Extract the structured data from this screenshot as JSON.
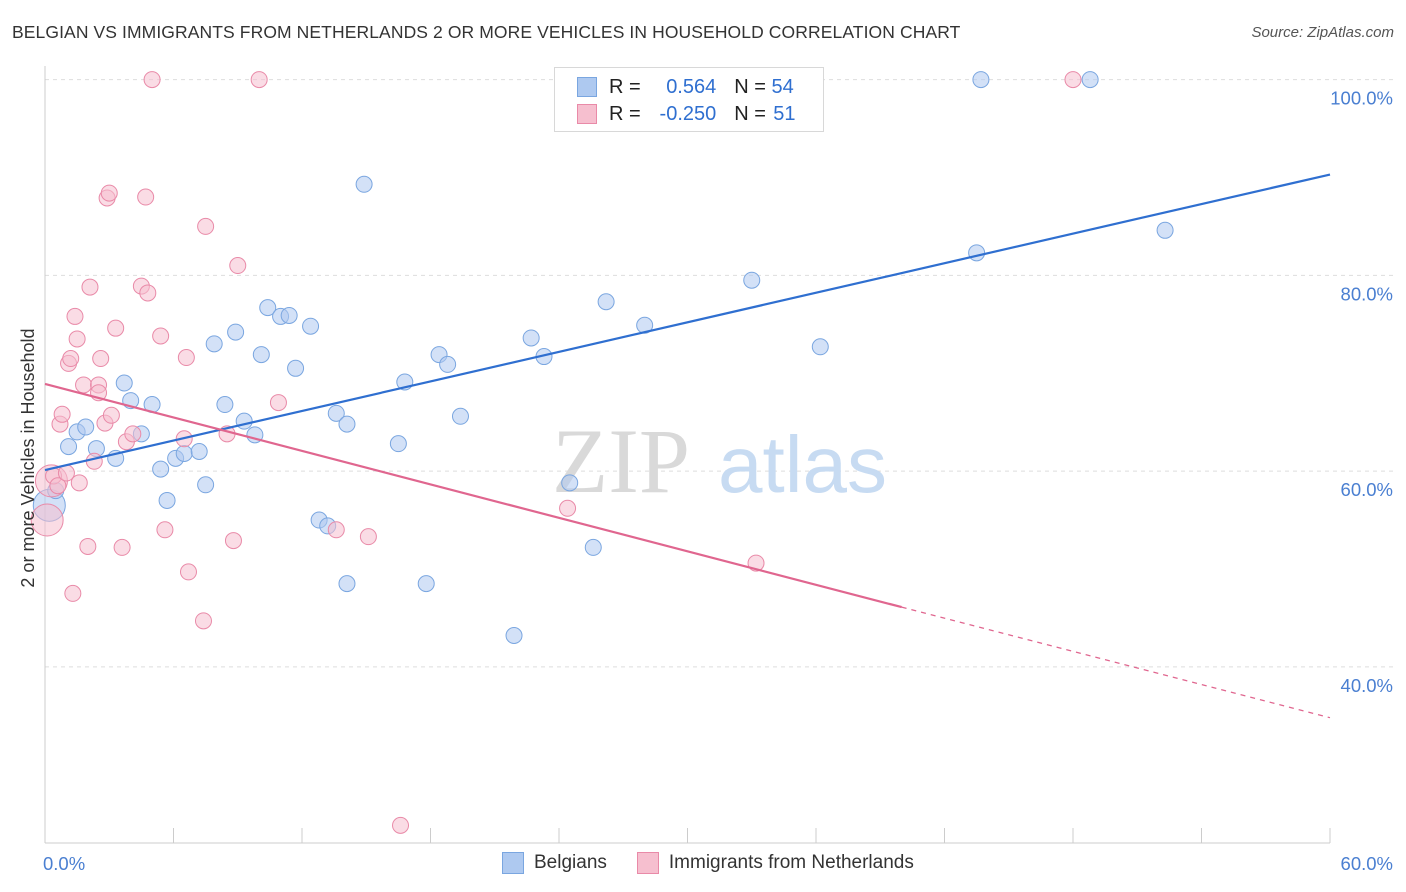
{
  "header": {
    "title": "BELGIAN VS IMMIGRANTS FROM NETHERLANDS 2 OR MORE VEHICLES IN HOUSEHOLD CORRELATION CHART",
    "source": "Source: ZipAtlas.com"
  },
  "legend": {
    "rows": [
      {
        "r_label": "R = ",
        "r_value": "0.564",
        "n_label": "N = ",
        "n_value": "54"
      },
      {
        "r_label": "R = ",
        "r_value": "-0.250",
        "n_label": "N = ",
        "n_value": "51"
      }
    ],
    "series_names": [
      "Belgians",
      "Immigrants from Netherlands"
    ]
  },
  "watermark": {
    "zip": "ZIP",
    "atlas": "atlas"
  },
  "colors": {
    "blue_fill": "#aec9f0",
    "blue_stroke": "#7aa6e0",
    "blue_line": "#2f6fd0",
    "pink_fill": "#f6bfcf",
    "pink_stroke": "#e98aa8",
    "pink_line": "#e0668f",
    "tick_color": "#4a7fd1",
    "grid": "#dddddd"
  },
  "chart_data": {
    "type": "scatter",
    "ylabel": "2 or more Vehicles in Household",
    "xlim": [
      0,
      60
    ],
    "ylim": [
      22,
      102
    ],
    "x_tick_labels": [
      "0.0%",
      "60.0%"
    ],
    "y_ticks": [
      40,
      60,
      80,
      100
    ],
    "y_tick_labels": [
      "40.0%",
      "60.0%",
      "80.0%",
      "100.0%"
    ],
    "grid": true,
    "series": [
      {
        "name": "Belgians",
        "points": [
          [
            0.2,
            56.5
          ],
          [
            0.5,
            58.0
          ],
          [
            1.1,
            62.5
          ],
          [
            1.5,
            64.0
          ],
          [
            1.9,
            64.5
          ],
          [
            2.4,
            62.3
          ],
          [
            3.3,
            61.3
          ],
          [
            3.7,
            69.0
          ],
          [
            4.0,
            67.2
          ],
          [
            4.5,
            63.8
          ],
          [
            5.0,
            66.8
          ],
          [
            5.4,
            60.2
          ],
          [
            5.7,
            57.0
          ],
          [
            6.1,
            61.3
          ],
          [
            6.5,
            61.8
          ],
          [
            7.2,
            62.0
          ],
          [
            7.5,
            58.6
          ],
          [
            7.9,
            73.0
          ],
          [
            8.4,
            66.8
          ],
          [
            8.9,
            74.2
          ],
          [
            9.3,
            65.1
          ],
          [
            9.8,
            63.7
          ],
          [
            10.1,
            71.9
          ],
          [
            10.4,
            76.7
          ],
          [
            11.0,
            75.8
          ],
          [
            11.4,
            75.9
          ],
          [
            11.7,
            70.5
          ],
          [
            12.4,
            74.8
          ],
          [
            12.8,
            55.0
          ],
          [
            13.2,
            54.4
          ],
          [
            13.6,
            65.9
          ],
          [
            14.1,
            48.5
          ],
          [
            14.1,
            64.8
          ],
          [
            14.9,
            89.3
          ],
          [
            16.5,
            62.8
          ],
          [
            16.8,
            69.1
          ],
          [
            17.8,
            48.5
          ],
          [
            18.4,
            71.9
          ],
          [
            18.8,
            70.9
          ],
          [
            19.4,
            65.6
          ],
          [
            21.9,
            43.2
          ],
          [
            22.7,
            73.6
          ],
          [
            23.3,
            71.7
          ],
          [
            24.5,
            58.8
          ],
          [
            25.6,
            52.2
          ],
          [
            26.2,
            77.3
          ],
          [
            28.0,
            74.9
          ],
          [
            33.0,
            79.5
          ],
          [
            36.2,
            72.7
          ],
          [
            43.5,
            82.3
          ],
          [
            43.7,
            100.0
          ],
          [
            48.8,
            100.0
          ],
          [
            52.3,
            84.6
          ]
        ],
        "trend": {
          "x": [
            0,
            60
          ],
          "y": [
            60.1,
            90.3
          ]
        }
      },
      {
        "name": "Immigrants from Netherlands",
        "points": [
          [
            0.1,
            55.0
          ],
          [
            0.3,
            59.0
          ],
          [
            0.4,
            59.5
          ],
          [
            0.6,
            58.5
          ],
          [
            0.7,
            64.8
          ],
          [
            0.8,
            65.8
          ],
          [
            1.0,
            59.8
          ],
          [
            1.1,
            71.0
          ],
          [
            1.2,
            71.5
          ],
          [
            1.3,
            47.5
          ],
          [
            1.4,
            75.8
          ],
          [
            1.5,
            73.5
          ],
          [
            1.6,
            58.8
          ],
          [
            1.8,
            68.8
          ],
          [
            2.0,
            52.3
          ],
          [
            2.1,
            78.8
          ],
          [
            2.3,
            61.0
          ],
          [
            2.5,
            68.8
          ],
          [
            2.5,
            68.0
          ],
          [
            2.6,
            71.5
          ],
          [
            2.8,
            64.9
          ],
          [
            2.9,
            87.9
          ],
          [
            3.0,
            88.4
          ],
          [
            3.1,
            65.7
          ],
          [
            3.3,
            74.6
          ],
          [
            3.6,
            52.2
          ],
          [
            3.8,
            63.0
          ],
          [
            4.1,
            63.8
          ],
          [
            4.5,
            78.9
          ],
          [
            4.7,
            88.0
          ],
          [
            4.8,
            78.2
          ],
          [
            5.0,
            100.0
          ],
          [
            5.4,
            73.8
          ],
          [
            5.6,
            54.0
          ],
          [
            6.5,
            63.3
          ],
          [
            6.6,
            71.6
          ],
          [
            6.7,
            49.7
          ],
          [
            7.4,
            44.7
          ],
          [
            7.5,
            85.0
          ],
          [
            8.5,
            63.8
          ],
          [
            8.8,
            52.9
          ],
          [
            9.0,
            81.0
          ],
          [
            10.0,
            100.0
          ],
          [
            10.9,
            67.0
          ],
          [
            13.6,
            54.0
          ],
          [
            15.1,
            53.3
          ],
          [
            16.6,
            23.8
          ],
          [
            24.4,
            56.2
          ],
          [
            33.2,
            50.6
          ],
          [
            48.0,
            100.0
          ]
        ],
        "trend": {
          "x": [
            0,
            40
          ],
          "y": [
            68.9,
            46.1
          ]
        },
        "trend_extension": {
          "x": [
            40,
            60
          ],
          "y": [
            46.1,
            34.8
          ]
        }
      }
    ]
  }
}
